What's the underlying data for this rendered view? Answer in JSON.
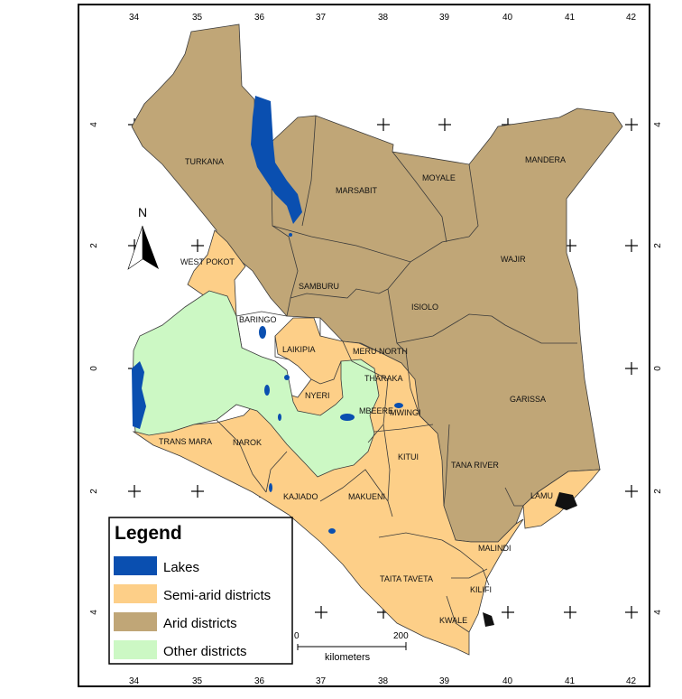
{
  "map": {
    "axis_top": [
      "34",
      "35",
      "36",
      "37",
      "38",
      "39",
      "40",
      "41",
      "42"
    ],
    "axis_bottom": [
      "34",
      "35",
      "36",
      "37",
      "38",
      "39",
      "40",
      "41",
      "42"
    ],
    "axis_left": [
      "4",
      "2",
      "0",
      "2",
      "4"
    ],
    "axis_right": [
      "4",
      "2",
      "0",
      "2",
      "4"
    ],
    "north": "N",
    "districts": [
      "TURKANA",
      "MARSABIT",
      "MOYALE",
      "MANDERA",
      "WAJIR",
      "WEST POKOT",
      "SAMBURU",
      "ISIOLO",
      "BARINGO",
      "LAIKIPIA",
      "MERU NORTH",
      "THARAKA",
      "NYERI",
      "MBEERE",
      "MWINGI",
      "GARISSA",
      "TRANS MARA",
      "NAROK",
      "KITUI",
      "TANA RIVER",
      "KAJIADO",
      "MAKUENI",
      "LAMU",
      "MALINDI",
      "TAITA TAVETA",
      "KILIFI",
      "KWALE"
    ]
  },
  "legend": {
    "title": "Legend",
    "items": [
      {
        "label": "Lakes",
        "color": "#0a4fb0"
      },
      {
        "label": "Semi-arid districts",
        "color": "#fdcf88"
      },
      {
        "label": "Arid districts",
        "color": "#c0a677"
      },
      {
        "label": "Other districts",
        "color": "#ccf8c4"
      }
    ]
  },
  "scale_bar": {
    "start": "0",
    "end": "200",
    "unit": "kilometers"
  }
}
